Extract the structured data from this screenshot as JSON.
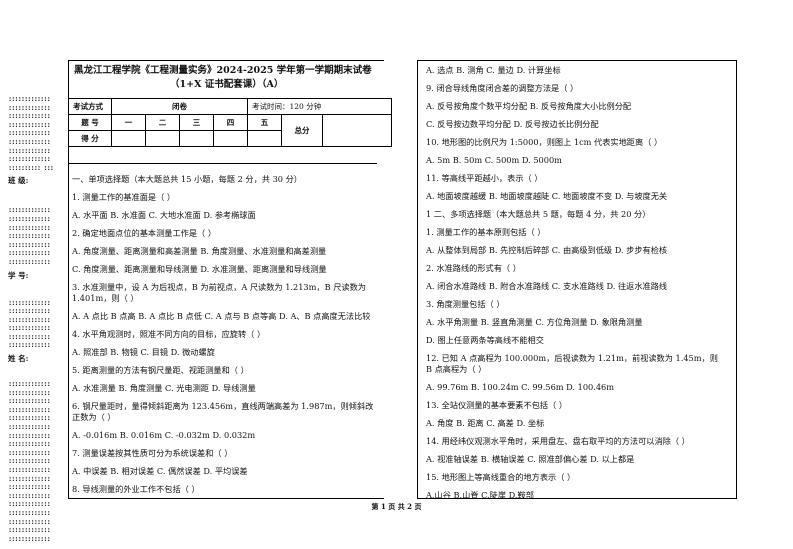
{
  "header": {
    "title": "黑龙江工程学院《工程测量实务》2024-2025 学年第一学期期末试卷",
    "subtitle": "（1+X 证书配套课）（A）"
  },
  "margin": {
    "class_label": "班 级:",
    "id_label": "学 号:",
    "name_label": "姓 名:"
  },
  "info_table": {
    "mode_label": "考试方式",
    "mode_value": "闭卷",
    "time": "考试时间：120 分钟",
    "q_label": "题 号",
    "cols": [
      "一",
      "二",
      "三",
      "四",
      "五"
    ],
    "total_label": "总分",
    "score_label": "得 分"
  },
  "left_lines": [
    "一、单项选择题（本大题总共 15 小题，每题 2 分，共 30 分）",
    "1. 测量工作的基准面是（ ）",
    "A. 水平面  B. 水准面  C. 大地水准面  D. 参考椭球面",
    "2. 确定地面点位的基本测量工作是（ ）",
    "A. 角度测量、距离测量和高差测量  B. 角度测量、水准测量和高差测量",
    "C. 角度测量、距离测量和导线测量  D. 水准测量、距离测量和导线测量",
    "3. 水准测量中，设 A 为后视点，B 为前视点，A 尺读数为 1.213m，B 尺读数为 1.401m，则（ ）",
    "A. A 点比 B 点高  B. A 点比 B 点低  C. A 点与 B 点等高  D. A、B 点高度无法比较",
    "4. 水平角观测时，照准不同方向的目标，应旋转（ ）",
    "A. 照准部  B. 物镜  C. 目镜  D. 微动螺旋",
    "5. 距离测量的方法有钢尺量距、视距测量和（ ）",
    "A. 水准测量  B. 角度测量  C. 光电测距  D. 导线测量",
    "6. 钢尺量距时，量得倾斜距离为 123.456m，直线两端高差为 1.987m，则倾斜改正数为（ ）",
    "A. -0.016m  B. 0.016m  C. -0.032m  D. 0.032m",
    "7. 测量误差按其性质可分为系统误差和（ ）",
    "A. 中误差  B. 相对误差  C. 偶然误差  D. 平均误差",
    "8. 导线测量的外业工作不包括（ ）"
  ],
  "right_lines": [
    "A. 选点  B. 测角  C. 量边  D. 计算坐标",
    "9. 闭合导线角度闭合差的调整方法是（ ）",
    "A. 反号按角度个数平均分配  B. 反号按角度大小比例分配",
    "C. 反号按边数平均分配  D. 反号按边长比例分配",
    "10. 地形图的比例尺为 1:5000，则图上 1cm 代表实地距离（ ）",
    "A. 5m  B. 50m  C. 500m  D. 5000m",
    "11. 等高线平距越小，表示（ ）",
    "A. 地面坡度越缓  B. 地面坡度越陡  C. 地面坡度不变  D. 与坡度无关",
    "1 二、多项选择题（本大题总共 5 题，每题 4 分，共 20 分）",
    "1. 测量工作的基本原则包括（ ）",
    "A. 从整体到局部  B. 先控制后碎部  C. 由高级到低级  D. 步步有检核",
    "2. 水准路线的形式有（ ）",
    "A. 闭合水准路线  B. 附合水准路线  C. 支水准路线  D. 往返水准路线",
    "3. 角度测量包括（ ）",
    "A. 水平角测量  B. 竖直角测量  C. 方位角测量  D. 象限角测量",
    "D. 图上任意两条等高线不能相交",
    "12. 已知 A 点高程为 100.000m，后视读数为 1.21m，前视读数为 1.45m，则 B 点高程为（ ）",
    "A. 99.76m  B. 100.24m  C. 99.56m  D. 100.46m",
    "13. 全站仪测量的基本要素不包括（ ）",
    "A. 角度  B. 距离  C. 高差  D. 坐标",
    "14. 用经纬仪观测水平角时，采用盘左、盘右取平均的方法可以消除（ ）",
    "A. 视准轴误差  B. 横轴误差  C. 照准部偏心差  D. 以上都是",
    "15. 地形图上等高线重合的地方表示（ ）",
    "A.山谷  B.山脊  C.陡崖  D.鞍部"
  ],
  "footer": "第 1 页 共 2 页"
}
